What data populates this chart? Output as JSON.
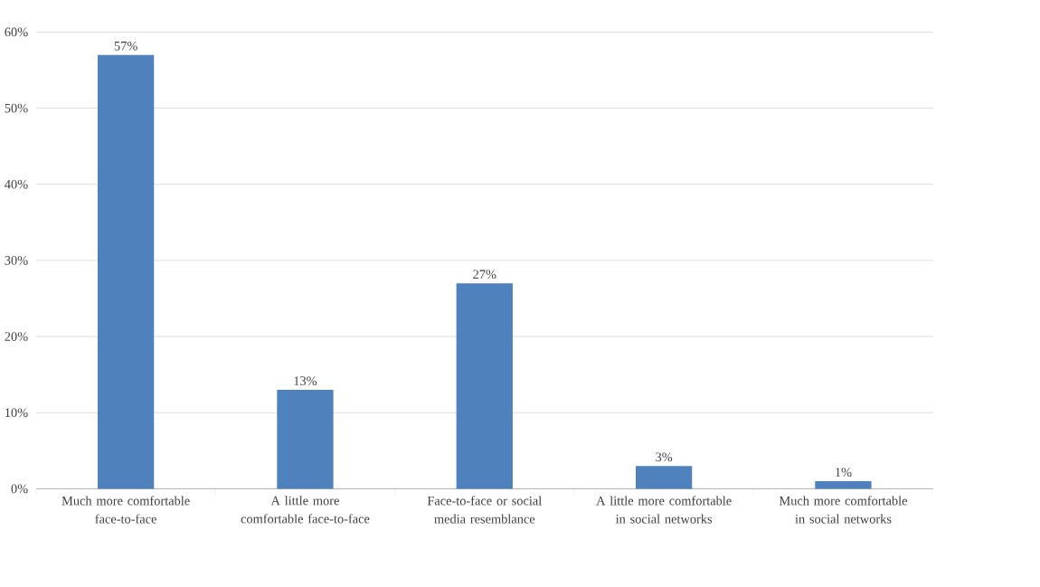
{
  "chart_data": {
    "type": "bar",
    "categories": [
      "Much more comfortable face-to-face",
      "A little more comfortable face-to-face",
      "Face-to-face or social media resemblance",
      "A little more comfortable in social networks",
      "Much more comfortable in social networks"
    ],
    "values": [
      57,
      13,
      27,
      3,
      1
    ],
    "value_labels": [
      "57%",
      "13%",
      "27%",
      "3%",
      "1%"
    ],
    "color": "#4f81bd",
    "ylim": [
      0,
      60
    ],
    "yticks": [
      {
        "value": 0,
        "label": "0%"
      },
      {
        "value": 10,
        "label": "10%"
      },
      {
        "value": 20,
        "label": "20%"
      },
      {
        "value": 30,
        "label": "30%"
      },
      {
        "value": 40,
        "label": "40%"
      },
      {
        "value": 50,
        "label": "50%"
      },
      {
        "value": 60,
        "label": "60%"
      }
    ],
    "grid": "y"
  }
}
